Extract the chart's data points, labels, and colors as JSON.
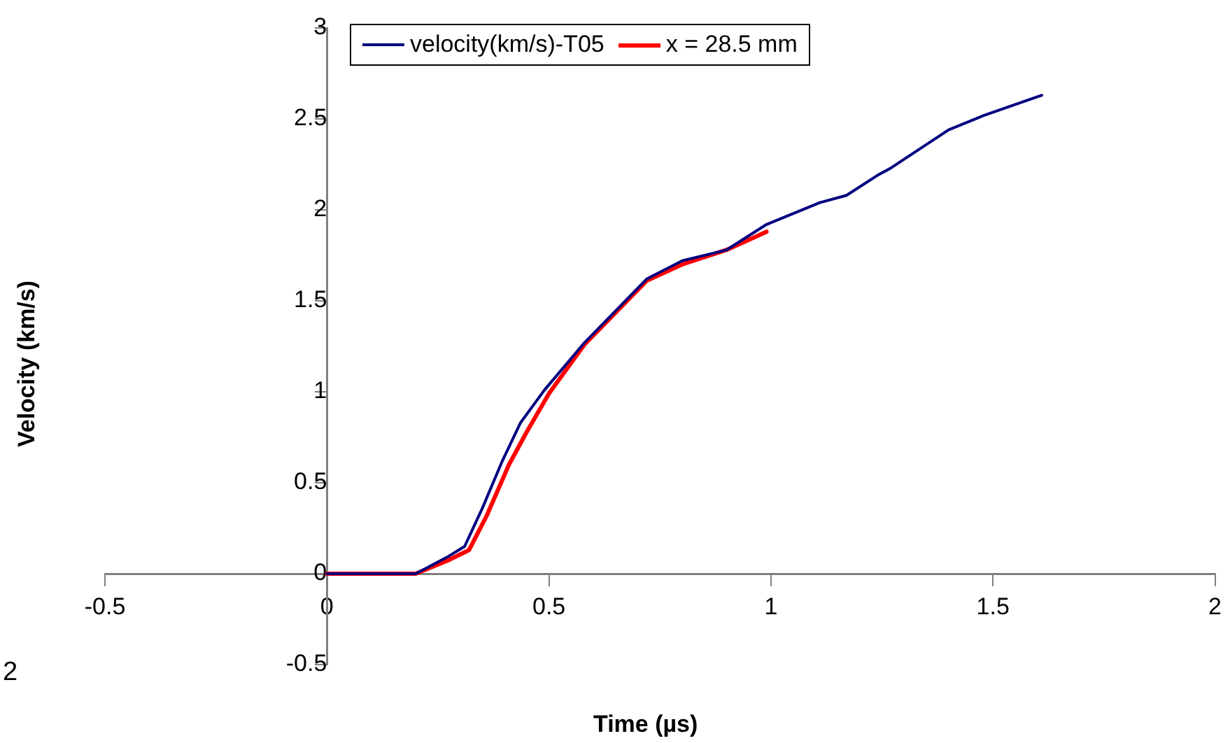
{
  "chart_data": {
    "type": "line",
    "xlabel": "Time (µs)",
    "ylabel": "Velocity (km/s)",
    "xlim": [
      -0.5,
      2
    ],
    "xticks": [
      -0.5,
      0,
      0.5,
      1,
      1.5,
      2
    ],
    "ylim": [
      -0.5,
      3
    ],
    "yticks": [
      -0.5,
      0,
      0.5,
      1,
      1.5,
      2,
      2.5,
      3
    ],
    "grid": false,
    "legend": "top",
    "marker": "none",
    "line_style": "solid",
    "annotations": [
      "2"
    ],
    "series": [
      {
        "name": "velocity(km/s)-T05",
        "color": "#000080",
        "x": [
          0,
          0.1,
          0.2,
          0.27,
          0.31,
          0.35,
          0.395,
          0.436,
          0.49,
          0.58,
          0.72,
          0.8,
          0.9,
          0.99,
          1.11,
          1.17,
          1.24,
          1.27,
          1.4,
          1.48,
          1.61
        ],
        "values": [
          0,
          0,
          0,
          0.09,
          0.15,
          0.36,
          0.62,
          0.83,
          1.01,
          1.27,
          1.62,
          1.72,
          1.78,
          1.92,
          2.04,
          2.08,
          2.19,
          2.23,
          2.44,
          2.52,
          2.63
        ]
      },
      {
        "name": "x = 28.5 mm",
        "color": "#ff0000",
        "x": [
          0,
          0.1,
          0.2,
          0.27,
          0.32,
          0.36,
          0.41,
          0.45,
          0.5,
          0.58,
          0.72,
          0.8,
          0.9,
          0.99
        ],
        "values": [
          0,
          0,
          0,
          0.07,
          0.13,
          0.32,
          0.6,
          0.78,
          0.99,
          1.26,
          1.61,
          1.7,
          1.78,
          1.88
        ]
      }
    ]
  }
}
